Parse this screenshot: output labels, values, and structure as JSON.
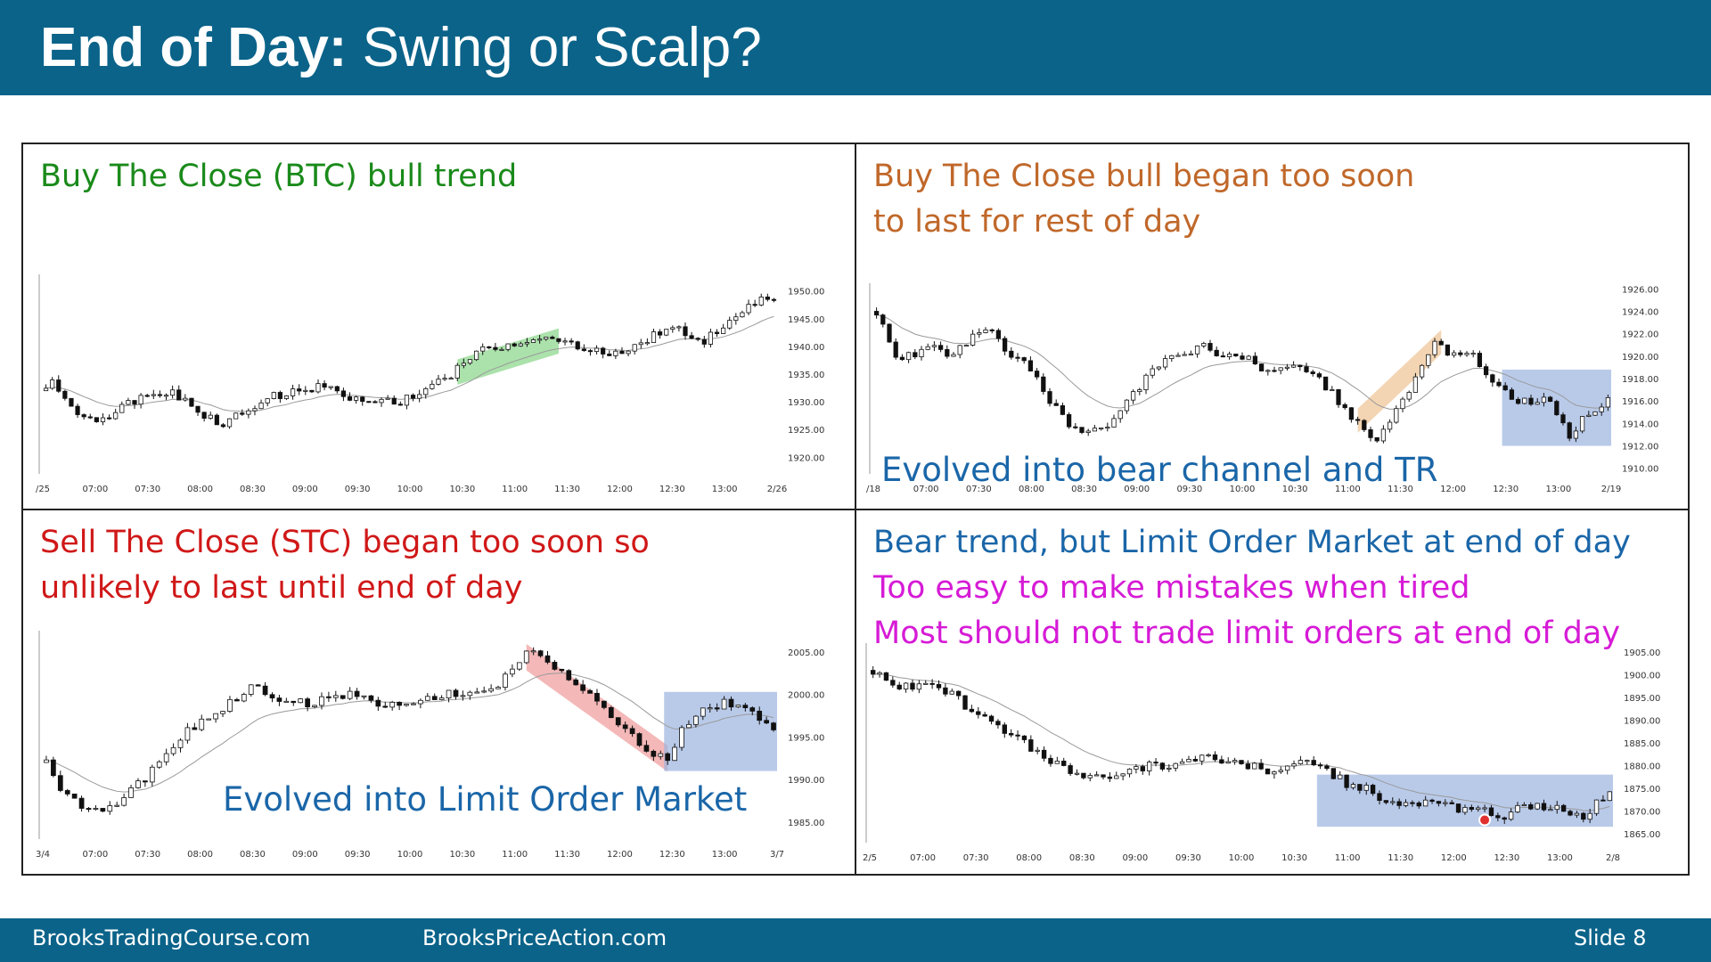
{
  "slide": {
    "title_bold": "End of Day:",
    "title_rest": " Swing or Scalp?",
    "footer_left": "BrooksTradingCourse.com",
    "footer_mid": "BrooksPriceAction.com",
    "footer_slide": "Slide  8"
  },
  "panels": {
    "tl": {
      "title_lines": [
        "Buy The Close (BTC) bull trend"
      ],
      "evolved": "",
      "color": "#1a8a1a"
    },
    "tr": {
      "title_lines": [
        "Buy The Close bull began too soon",
        "to last for rest of day"
      ],
      "evolved": "Evolved into bear channel and TR",
      "color": "#c0682a"
    },
    "bl": {
      "title_lines": [
        "Sell The Close (STC) began too soon so",
        "unlikely to last until end of day"
      ],
      "evolved": "Evolved into Limit Order Market",
      "color": "#d01818"
    },
    "br": {
      "title_lines": [
        "Bear trend, but Limit Order Market at end of day",
        "Too easy to make mistakes when tired",
        "Most should not trade limit orders at end of day"
      ],
      "evolved": "",
      "color": "#1a66a8",
      "color2": "#d61bd6"
    }
  },
  "evolved_color": "#1a66a8",
  "chart_data": [
    {
      "id": "tl",
      "type": "candlestick",
      "x_ticks": [
        "/25",
        "07:00",
        "07:30",
        "08:00",
        "08:30",
        "09:00",
        "09:30",
        "10:00",
        "10:30",
        "11:00",
        "11:30",
        "12:00",
        "12:30",
        "13:00",
        "2/26"
      ],
      "y_ticks": [
        "1950.00",
        "1945.00",
        "1940.00",
        "1935.00",
        "1930.00",
        "1925.00",
        "1920.00"
      ],
      "ylim": [
        1917,
        1953
      ],
      "shade": {
        "type": "channel",
        "color": "#8fd88f",
        "from_index": 65,
        "to_index": 81
      },
      "path": [
        [
          0,
          1932
        ],
        [
          1,
          1934
        ],
        [
          4,
          1929
        ],
        [
          8,
          1926
        ],
        [
          12,
          1929
        ],
        [
          16,
          1931
        ],
        [
          20,
          1932
        ],
        [
          24,
          1928
        ],
        [
          28,
          1926
        ],
        [
          32,
          1929
        ],
        [
          36,
          1931
        ],
        [
          40,
          1932
        ],
        [
          44,
          1933
        ],
        [
          48,
          1931
        ],
        [
          52,
          1930
        ],
        [
          56,
          1930
        ],
        [
          60,
          1932
        ],
        [
          64,
          1935
        ],
        [
          68,
          1939
        ],
        [
          72,
          1940
        ],
        [
          76,
          1941
        ],
        [
          80,
          1941
        ],
        [
          84,
          1940
        ],
        [
          88,
          1939
        ],
        [
          92,
          1939
        ],
        [
          96,
          1942
        ],
        [
          100,
          1943
        ],
        [
          104,
          1941
        ],
        [
          108,
          1945
        ],
        [
          112,
          1948
        ],
        [
          115,
          1949
        ]
      ]
    },
    {
      "id": "tr",
      "type": "candlestick",
      "x_ticks": [
        "/18",
        "07:00",
        "07:30",
        "08:00",
        "08:30",
        "09:00",
        "09:30",
        "10:00",
        "10:30",
        "11:00",
        "11:30",
        "12:00",
        "12:30",
        "13:00",
        "2/19"
      ],
      "y_ticks": [
        "1926.00",
        "1924.00",
        "1922.00",
        "1920.00",
        "1918.00",
        "1916.00",
        "1914.00",
        "1912.00",
        "1910.00"
      ],
      "ylim": [
        1909.5,
        1926.5
      ],
      "shade": [
        {
          "type": "channel",
          "color": "#efc79a",
          "from_index": 75,
          "to_index": 88
        },
        {
          "type": "box",
          "color": "#9bb3e0",
          "from_index": 98,
          "to_index": 114,
          "range": [
            1912,
            1918.8
          ]
        }
      ],
      "path": [
        [
          0,
          1924
        ],
        [
          3,
          1920
        ],
        [
          6,
          1920
        ],
        [
          9,
          1921
        ],
        [
          12,
          1920
        ],
        [
          15,
          1922
        ],
        [
          18,
          1922
        ],
        [
          21,
          1920
        ],
        [
          24,
          1919
        ],
        [
          27,
          1916
        ],
        [
          30,
          1914
        ],
        [
          33,
          1913
        ],
        [
          36,
          1914
        ],
        [
          39,
          1916
        ],
        [
          42,
          1918
        ],
        [
          45,
          1920
        ],
        [
          48,
          1920
        ],
        [
          51,
          1921
        ],
        [
          54,
          1920
        ],
        [
          57,
          1920
        ],
        [
          60,
          1919
        ],
        [
          63,
          1919
        ],
        [
          66,
          1919
        ],
        [
          69,
          1918
        ],
        [
          72,
          1916
        ],
        [
          75,
          1914
        ],
        [
          78,
          1912.5
        ],
        [
          81,
          1915
        ],
        [
          84,
          1918
        ],
        [
          87,
          1921
        ],
        [
          90,
          1920
        ],
        [
          93,
          1920
        ],
        [
          96,
          1918
        ],
        [
          99,
          1916
        ],
        [
          102,
          1916
        ],
        [
          105,
          1916
        ],
        [
          108,
          1913
        ],
        [
          111,
          1915
        ],
        [
          114,
          1916
        ]
      ]
    },
    {
      "id": "bl",
      "type": "candlestick",
      "x_ticks": [
        "3/4",
        "07:00",
        "07:30",
        "08:00",
        "08:30",
        "09:00",
        "09:30",
        "10:00",
        "10:30",
        "11:00",
        "11:30",
        "12:00",
        "12:30",
        "13:00",
        "3/7"
      ],
      "y_ticks": [
        "2005.00",
        "2000.00",
        "1995.00",
        "1990.00",
        "1985.00"
      ],
      "ylim": [
        1983,
        2007.5
      ],
      "shade": [
        {
          "type": "channel",
          "color": "#f0a0a0",
          "from_index": 68,
          "to_index": 88,
          "direction": "down"
        },
        {
          "type": "box",
          "color": "#9bb3e0",
          "from_index": 88,
          "to_index": 103,
          "range": [
            1991,
            2000.3
          ]
        }
      ],
      "path": [
        [
          0,
          1992
        ],
        [
          2,
          1989
        ],
        [
          5,
          1987
        ],
        [
          8,
          1986
        ],
        [
          11,
          1988
        ],
        [
          14,
          1990
        ],
        [
          17,
          1993
        ],
        [
          20,
          1996
        ],
        [
          23,
          1997
        ],
        [
          26,
          1999
        ],
        [
          29,
          2001
        ],
        [
          32,
          2000
        ],
        [
          35,
          1999
        ],
        [
          38,
          1999
        ],
        [
          41,
          2000
        ],
        [
          44,
          2000
        ],
        [
          47,
          1999
        ],
        [
          50,
          1999
        ],
        [
          53,
          1999
        ],
        [
          56,
          2000
        ],
        [
          59,
          2000
        ],
        [
          62,
          2000
        ],
        [
          65,
          2002
        ],
        [
          68,
          2005
        ],
        [
          71,
          2004
        ],
        [
          74,
          2002
        ],
        [
          77,
          2000
        ],
        [
          80,
          1997
        ],
        [
          83,
          1995
        ],
        [
          86,
          1993
        ],
        [
          88,
          1992.5
        ],
        [
          90,
          1996
        ],
        [
          93,
          1998
        ],
        [
          96,
          1999
        ],
        [
          99,
          1998
        ],
        [
          102,
          1997
        ],
        [
          103,
          1996
        ]
      ]
    },
    {
      "id": "br",
      "type": "candlestick",
      "x_ticks": [
        "2/5",
        "07:00",
        "07:30",
        "08:00",
        "08:30",
        "09:00",
        "09:30",
        "10:00",
        "10:30",
        "11:00",
        "11:30",
        "12:00",
        "12:30",
        "13:00",
        "2/8"
      ],
      "y_ticks": [
        "1905.00",
        "1900.00",
        "1895.00",
        "1890.00",
        "1885.00",
        "1880.00",
        "1875.00",
        "1870.00",
        "1865.00"
      ],
      "ylim": [
        1863,
        1907
      ],
      "shade": {
        "type": "box",
        "color": "#9bb3e0",
        "from_index": 68,
        "to_index": 112,
        "range": [
          1866.5,
          1878
        ]
      },
      "path": [
        [
          0,
          1901
        ],
        [
          3,
          1898
        ],
        [
          6,
          1897
        ],
        [
          9,
          1898
        ],
        [
          12,
          1896
        ],
        [
          15,
          1892
        ],
        [
          18,
          1889
        ],
        [
          21,
          1887
        ],
        [
          24,
          1884
        ],
        [
          27,
          1881
        ],
        [
          30,
          1879
        ],
        [
          33,
          1877
        ],
        [
          36,
          1878
        ],
        [
          39,
          1879
        ],
        [
          42,
          1880
        ],
        [
          45,
          1880
        ],
        [
          48,
          1881
        ],
        [
          51,
          1882
        ],
        [
          54,
          1881
        ],
        [
          57,
          1880
        ],
        [
          60,
          1879
        ],
        [
          63,
          1880
        ],
        [
          66,
          1881
        ],
        [
          69,
          1879
        ],
        [
          72,
          1876
        ],
        [
          75,
          1875
        ],
        [
          78,
          1872
        ],
        [
          81,
          1871
        ],
        [
          84,
          1872
        ],
        [
          87,
          1871
        ],
        [
          90,
          1870
        ],
        [
          93,
          1870
        ],
        [
          96,
          1869
        ],
        [
          99,
          1871
        ],
        [
          102,
          1871
        ],
        [
          105,
          1870
        ],
        [
          108,
          1869
        ],
        [
          111,
          1873
        ],
        [
          112,
          1875
        ]
      ],
      "marker": {
        "index": 93,
        "value": 1868,
        "color": "#e03030"
      }
    }
  ]
}
